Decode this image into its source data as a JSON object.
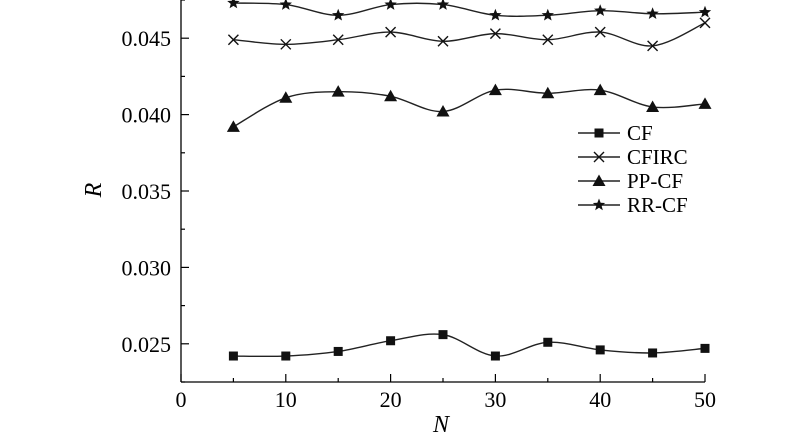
{
  "chart_data": {
    "type": "line",
    "title": "",
    "xlabel": "N",
    "ylabel": "R",
    "x": [
      5,
      10,
      15,
      20,
      25,
      30,
      35,
      40,
      45,
      50
    ],
    "xlim": [
      0,
      50
    ],
    "ylim": [
      0.0225,
      0.0475
    ],
    "xticks": [
      0,
      10,
      20,
      30,
      40,
      50
    ],
    "xtick_labels": [
      "0",
      "10",
      "20",
      "30",
      "40",
      "50"
    ],
    "yticks": [
      0.025,
      0.03,
      0.035,
      0.04,
      0.045
    ],
    "ytick_labels": [
      "0.025",
      "0.030",
      "0.035",
      "0.040",
      "0.045"
    ],
    "grid": false,
    "legend_position": "right",
    "series": [
      {
        "name": "CF",
        "marker": "square",
        "values": [
          0.0242,
          0.0242,
          0.0245,
          0.0252,
          0.0256,
          0.0242,
          0.0251,
          0.0246,
          0.0244,
          0.0247
        ]
      },
      {
        "name": "CFIRC",
        "marker": "x",
        "values": [
          0.0449,
          0.0446,
          0.0449,
          0.0454,
          0.0448,
          0.0453,
          0.0449,
          0.0454,
          0.0445,
          0.046
        ]
      },
      {
        "name": "PP-CF",
        "marker": "triangle",
        "values": [
          0.0392,
          0.0411,
          0.0415,
          0.0412,
          0.0402,
          0.0416,
          0.0414,
          0.0416,
          0.0405,
          0.0407
        ]
      },
      {
        "name": "RR-CF",
        "marker": "star",
        "values": [
          0.0473,
          0.0472,
          0.0465,
          0.0472,
          0.0472,
          0.0465,
          0.0465,
          0.0468,
          0.0466,
          0.0467
        ]
      }
    ]
  }
}
